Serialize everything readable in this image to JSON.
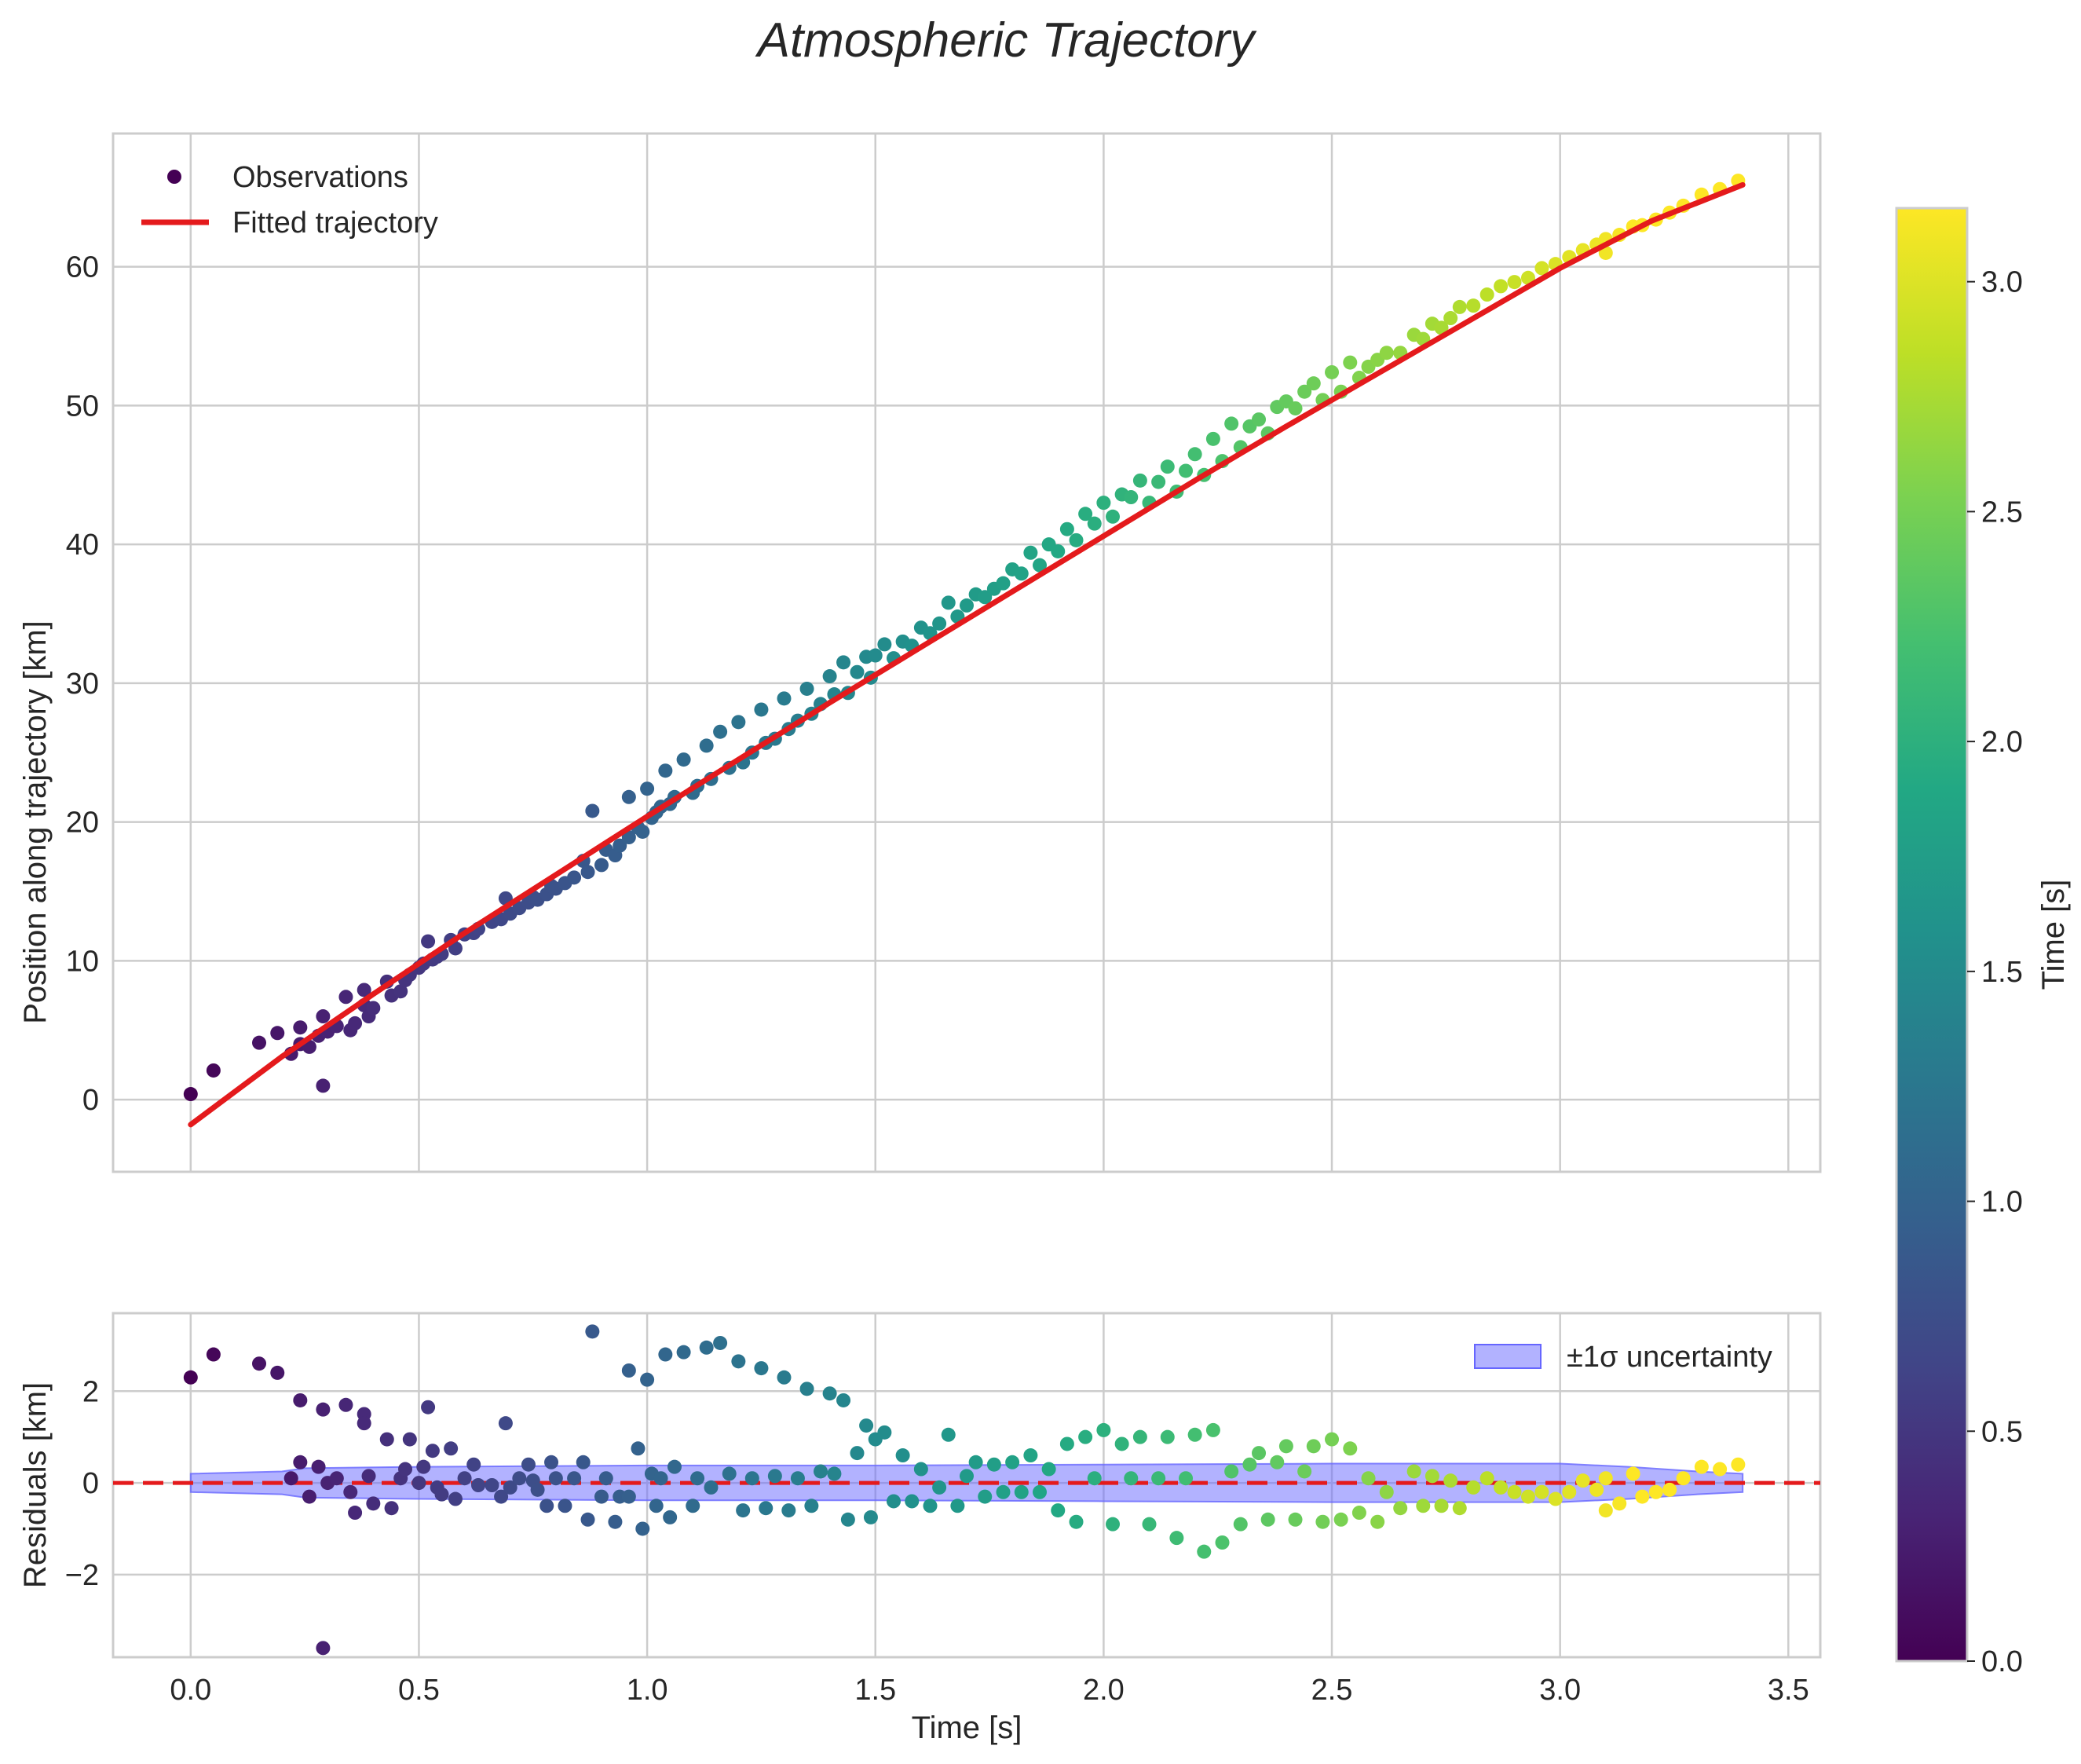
{
  "chart_data": {
    "title": "Atmospheric Trajectory",
    "panels": [
      {
        "id": "trajectory",
        "type": "scatter+line",
        "ylabel": "Position along trajectory [km]",
        "xlim": [
          -0.17,
          3.57
        ],
        "ylim": [
          -5.2,
          69.6
        ],
        "xticks": [
          0.0,
          0.5,
          1.0,
          1.5,
          2.0,
          2.5,
          3.0,
          3.5
        ],
        "yticks": [
          0,
          10,
          20,
          30,
          40,
          50,
          60
        ],
        "ytick_labels": [
          "0",
          "10",
          "20",
          "30",
          "40",
          "50",
          "60"
        ],
        "grid": true,
        "legend": {
          "position": "upper-left",
          "entries": [
            "Observations",
            "Fitted trajectory"
          ]
        },
        "series": [
          {
            "name": "Observations",
            "kind": "scatter",
            "color_by": "time"
          },
          {
            "name": "Fitted trajectory",
            "kind": "line",
            "color": "#e41a1c"
          }
        ]
      },
      {
        "id": "residuals",
        "type": "scatter+band",
        "ylabel": "Residuals [km]",
        "xlabel": "Time [s]",
        "xlim": [
          -0.17,
          3.57
        ],
        "ylim": [
          -3.8,
          3.7
        ],
        "xticks": [
          0.0,
          0.5,
          1.0,
          1.5,
          2.0,
          2.5,
          3.0,
          3.5
        ],
        "xtick_labels": [
          "0.0",
          "0.5",
          "1.0",
          "1.5",
          "2.0",
          "2.5",
          "3.0",
          "3.5"
        ],
        "yticks": [
          -2,
          0,
          2
        ],
        "ytick_labels": [
          "−2",
          "0",
          "2"
        ],
        "grid": true,
        "zero_line": {
          "value": 0,
          "color": "#e41a1c",
          "style": "dashed"
        },
        "legend": {
          "position": "upper-right",
          "entries": [
            "±1σ uncertainty"
          ]
        },
        "band_color": "#6666ff"
      }
    ],
    "colorbar": {
      "label": "Time [s]",
      "colormap": "viridis",
      "range": [
        0.0,
        3.16
      ],
      "ticks": [
        0.0,
        0.5,
        1.0,
        1.5,
        2.0,
        2.5,
        3.0
      ],
      "tick_labels": [
        "0.0",
        "0.5",
        "1.0",
        "1.5",
        "2.0",
        "2.5",
        "3.0"
      ]
    },
    "fit_curve": [
      [
        0.0,
        -1.8
      ],
      [
        0.2,
        3.1
      ],
      [
        0.4,
        7.6
      ],
      [
        0.6,
        12.0
      ],
      [
        0.8,
        16.2
      ],
      [
        1.0,
        20.4
      ],
      [
        1.2,
        24.5
      ],
      [
        1.4,
        28.6
      ],
      [
        1.6,
        32.6
      ],
      [
        1.8,
        36.6
      ],
      [
        2.0,
        40.6
      ],
      [
        2.2,
        44.6
      ],
      [
        2.4,
        48.5
      ],
      [
        2.6,
        52.3
      ],
      [
        2.8,
        56.1
      ],
      [
        3.0,
        59.9
      ],
      [
        3.2,
        63.3
      ],
      [
        3.4,
        65.9
      ]
    ],
    "band": [
      [
        0.0,
        0.2
      ],
      [
        0.2,
        0.25
      ],
      [
        0.25,
        0.32
      ],
      [
        0.5,
        0.35
      ],
      [
        1.0,
        0.38
      ],
      [
        1.5,
        0.38
      ],
      [
        2.0,
        0.4
      ],
      [
        2.5,
        0.42
      ],
      [
        3.0,
        0.42
      ],
      [
        3.15,
        0.35
      ],
      [
        3.3,
        0.25
      ],
      [
        3.4,
        0.2
      ]
    ],
    "observations": [
      [
        0.0,
        0.4,
        2.3
      ],
      [
        0.05,
        2.1,
        2.8
      ],
      [
        0.15,
        4.1,
        2.6
      ],
      [
        0.19,
        4.8,
        2.4
      ],
      [
        0.22,
        3.3,
        0.1
      ],
      [
        0.24,
        5.2,
        1.8
      ],
      [
        0.24,
        4.0,
        0.45
      ],
      [
        0.26,
        3.8,
        -0.3
      ],
      [
        0.28,
        4.6,
        0.35
      ],
      [
        0.29,
        6.0,
        1.6
      ],
      [
        0.29,
        1.0,
        -3.6
      ],
      [
        0.3,
        4.9,
        0.0
      ],
      [
        0.32,
        5.3,
        0.1
      ],
      [
        0.34,
        7.4,
        1.7
      ],
      [
        0.35,
        5.0,
        -0.2
      ],
      [
        0.36,
        5.5,
        -0.65
      ],
      [
        0.38,
        7.9,
        1.5
      ],
      [
        0.38,
        6.8,
        1.3
      ],
      [
        0.39,
        6.0,
        0.15
      ],
      [
        0.4,
        6.6,
        -0.45
      ],
      [
        0.43,
        8.5,
        0.95
      ],
      [
        0.44,
        7.5,
        -0.55
      ],
      [
        0.46,
        7.8,
        0.1
      ],
      [
        0.47,
        8.6,
        0.3
      ],
      [
        0.48,
        9.0,
        0.95
      ],
      [
        0.5,
        9.5,
        0.0
      ],
      [
        0.51,
        9.8,
        0.35
      ],
      [
        0.52,
        11.4,
        1.65
      ],
      [
        0.53,
        10.1,
        0.7
      ],
      [
        0.54,
        10.3,
        -0.1
      ],
      [
        0.55,
        10.5,
        -0.25
      ],
      [
        0.57,
        11.5,
        0.75
      ],
      [
        0.58,
        10.9,
        -0.35
      ],
      [
        0.6,
        11.9,
        0.1
      ],
      [
        0.62,
        12.0,
        0.4
      ],
      [
        0.63,
        12.3,
        -0.05
      ],
      [
        0.66,
        12.8,
        -0.05
      ],
      [
        0.68,
        13.0,
        -0.3
      ],
      [
        0.69,
        14.5,
        1.3
      ],
      [
        0.7,
        13.4,
        -0.1
      ],
      [
        0.72,
        13.8,
        0.1
      ],
      [
        0.74,
        14.2,
        0.4
      ],
      [
        0.75,
        14.6,
        0.05
      ],
      [
        0.76,
        14.4,
        -0.15
      ],
      [
        0.78,
        14.8,
        -0.5
      ],
      [
        0.79,
        15.4,
        0.45
      ],
      [
        0.8,
        15.2,
        0.1
      ],
      [
        0.82,
        15.6,
        -0.5
      ],
      [
        0.84,
        16.0,
        0.1
      ],
      [
        0.86,
        17.2,
        0.45
      ],
      [
        0.87,
        16.4,
        -0.8
      ],
      [
        0.88,
        20.8,
        3.3
      ],
      [
        0.9,
        16.9,
        -0.3
      ],
      [
        0.91,
        18.0,
        0.1
      ],
      [
        0.93,
        17.6,
        -0.85
      ],
      [
        0.94,
        18.3,
        -0.3
      ],
      [
        0.96,
        18.9,
        -0.3
      ],
      [
        0.96,
        21.8,
        2.45
      ],
      [
        0.98,
        19.6,
        0.75
      ],
      [
        0.99,
        19.3,
        -1.0
      ],
      [
        1.0,
        22.4,
        2.25
      ],
      [
        1.01,
        20.3,
        0.2
      ],
      [
        1.02,
        20.7,
        -0.5
      ],
      [
        1.03,
        21.1,
        0.1
      ],
      [
        1.04,
        23.7,
        2.8
      ],
      [
        1.05,
        21.3,
        -0.75
      ],
      [
        1.06,
        21.8,
        0.35
      ],
      [
        1.08,
        24.5,
        2.85
      ],
      [
        1.1,
        22.1,
        -0.5
      ],
      [
        1.11,
        22.6,
        0.1
      ],
      [
        1.13,
        25.5,
        2.95
      ],
      [
        1.14,
        23.1,
        -0.1
      ],
      [
        1.16,
        26.5,
        3.05
      ],
      [
        1.18,
        23.9,
        0.2
      ],
      [
        1.2,
        27.2,
        2.65
      ],
      [
        1.21,
        24.3,
        -0.6
      ],
      [
        1.23,
        25.0,
        0.1
      ],
      [
        1.25,
        28.1,
        2.5
      ],
      [
        1.26,
        25.7,
        -0.55
      ],
      [
        1.28,
        26.0,
        0.15
      ],
      [
        1.3,
        28.9,
        2.3
      ],
      [
        1.31,
        26.7,
        -0.6
      ],
      [
        1.33,
        27.3,
        0.1
      ],
      [
        1.35,
        29.6,
        2.05
      ],
      [
        1.36,
        27.8,
        -0.5
      ],
      [
        1.38,
        28.5,
        0.25
      ],
      [
        1.4,
        30.5,
        1.95
      ],
      [
        1.41,
        29.2,
        0.2
      ],
      [
        1.43,
        31.5,
        1.8
      ],
      [
        1.44,
        29.3,
        -0.8
      ],
      [
        1.46,
        30.8,
        0.65
      ],
      [
        1.48,
        31.9,
        1.25
      ],
      [
        1.49,
        30.4,
        -0.75
      ],
      [
        1.5,
        32.0,
        0.95
      ],
      [
        1.52,
        32.8,
        1.1
      ],
      [
        1.54,
        31.8,
        -0.4
      ],
      [
        1.56,
        33.0,
        0.6
      ],
      [
        1.58,
        32.7,
        -0.4
      ],
      [
        1.6,
        34.0,
        0.3
      ],
      [
        1.62,
        33.6,
        -0.5
      ],
      [
        1.64,
        34.3,
        -0.1
      ],
      [
        1.66,
        35.8,
        1.05
      ],
      [
        1.68,
        34.8,
        -0.5
      ],
      [
        1.7,
        35.6,
        0.15
      ],
      [
        1.72,
        36.4,
        0.45
      ],
      [
        1.74,
        36.2,
        -0.3
      ],
      [
        1.76,
        36.8,
        0.4
      ],
      [
        1.78,
        37.2,
        -0.2
      ],
      [
        1.8,
        38.2,
        0.45
      ],
      [
        1.82,
        37.9,
        -0.2
      ],
      [
        1.84,
        39.4,
        0.6
      ],
      [
        1.86,
        38.5,
        -0.2
      ],
      [
        1.88,
        40.0,
        0.3
      ],
      [
        1.9,
        39.5,
        -0.6
      ],
      [
        1.92,
        41.1,
        0.85
      ],
      [
        1.94,
        40.3,
        -0.85
      ],
      [
        1.96,
        42.2,
        1.0
      ],
      [
        1.98,
        41.5,
        0.1
      ],
      [
        2.0,
        43.0,
        1.15
      ],
      [
        2.02,
        42.0,
        -0.9
      ],
      [
        2.04,
        43.6,
        0.85
      ],
      [
        2.06,
        43.4,
        0.1
      ],
      [
        2.08,
        44.6,
        1.0
      ],
      [
        2.1,
        43.0,
        -0.9
      ],
      [
        2.12,
        44.5,
        0.1
      ],
      [
        2.14,
        45.6,
        1.0
      ],
      [
        2.16,
        43.8,
        -1.2
      ],
      [
        2.18,
        45.3,
        0.1
      ],
      [
        2.2,
        46.5,
        1.05
      ],
      [
        2.22,
        45.0,
        -1.5
      ],
      [
        2.24,
        47.6,
        1.15
      ],
      [
        2.26,
        46.0,
        -1.3
      ],
      [
        2.28,
        48.7,
        0.25
      ],
      [
        2.3,
        47.0,
        -0.9
      ],
      [
        2.32,
        48.5,
        0.4
      ],
      [
        2.34,
        49.0,
        0.65
      ],
      [
        2.36,
        48.0,
        -0.8
      ],
      [
        2.38,
        49.9,
        0.45
      ],
      [
        2.4,
        50.3,
        0.8
      ],
      [
        2.42,
        49.8,
        -0.8
      ],
      [
        2.44,
        51.0,
        0.25
      ],
      [
        2.46,
        51.6,
        0.8
      ],
      [
        2.48,
        50.4,
        -0.85
      ],
      [
        2.5,
        52.4,
        0.95
      ],
      [
        2.52,
        51.0,
        -0.8
      ],
      [
        2.54,
        53.1,
        0.75
      ],
      [
        2.56,
        52.0,
        -0.65
      ],
      [
        2.58,
        52.8,
        0.1
      ],
      [
        2.6,
        53.3,
        -0.85
      ],
      [
        2.62,
        53.8,
        -0.2
      ],
      [
        2.65,
        53.8,
        -0.55
      ],
      [
        2.68,
        55.1,
        0.25
      ],
      [
        2.7,
        54.8,
        -0.5
      ],
      [
        2.72,
        55.9,
        0.15
      ],
      [
        2.74,
        55.6,
        -0.5
      ],
      [
        2.76,
        56.3,
        0.05
      ],
      [
        2.78,
        57.1,
        -0.55
      ],
      [
        2.81,
        57.2,
        -0.1
      ],
      [
        2.84,
        58.0,
        0.1
      ],
      [
        2.87,
        58.6,
        -0.1
      ],
      [
        2.9,
        58.9,
        -0.2
      ],
      [
        2.93,
        59.2,
        -0.3
      ],
      [
        2.96,
        59.9,
        -0.2
      ],
      [
        2.99,
        60.2,
        -0.35
      ],
      [
        3.02,
        60.7,
        -0.2
      ],
      [
        3.05,
        61.2,
        0.05
      ],
      [
        3.08,
        61.6,
        -0.15
      ],
      [
        3.1,
        62.0,
        0.1
      ],
      [
        3.1,
        61.0,
        -0.6
      ],
      [
        3.13,
        62.3,
        -0.45
      ],
      [
        3.16,
        62.9,
        0.2
      ],
      [
        3.18,
        63.0,
        -0.3
      ],
      [
        3.21,
        63.4,
        -0.2
      ],
      [
        3.24,
        63.9,
        -0.15
      ],
      [
        3.27,
        64.4,
        0.1
      ],
      [
        3.31,
        65.2,
        0.35
      ],
      [
        3.35,
        65.6,
        0.3
      ],
      [
        3.39,
        66.2,
        0.4
      ]
    ]
  }
}
